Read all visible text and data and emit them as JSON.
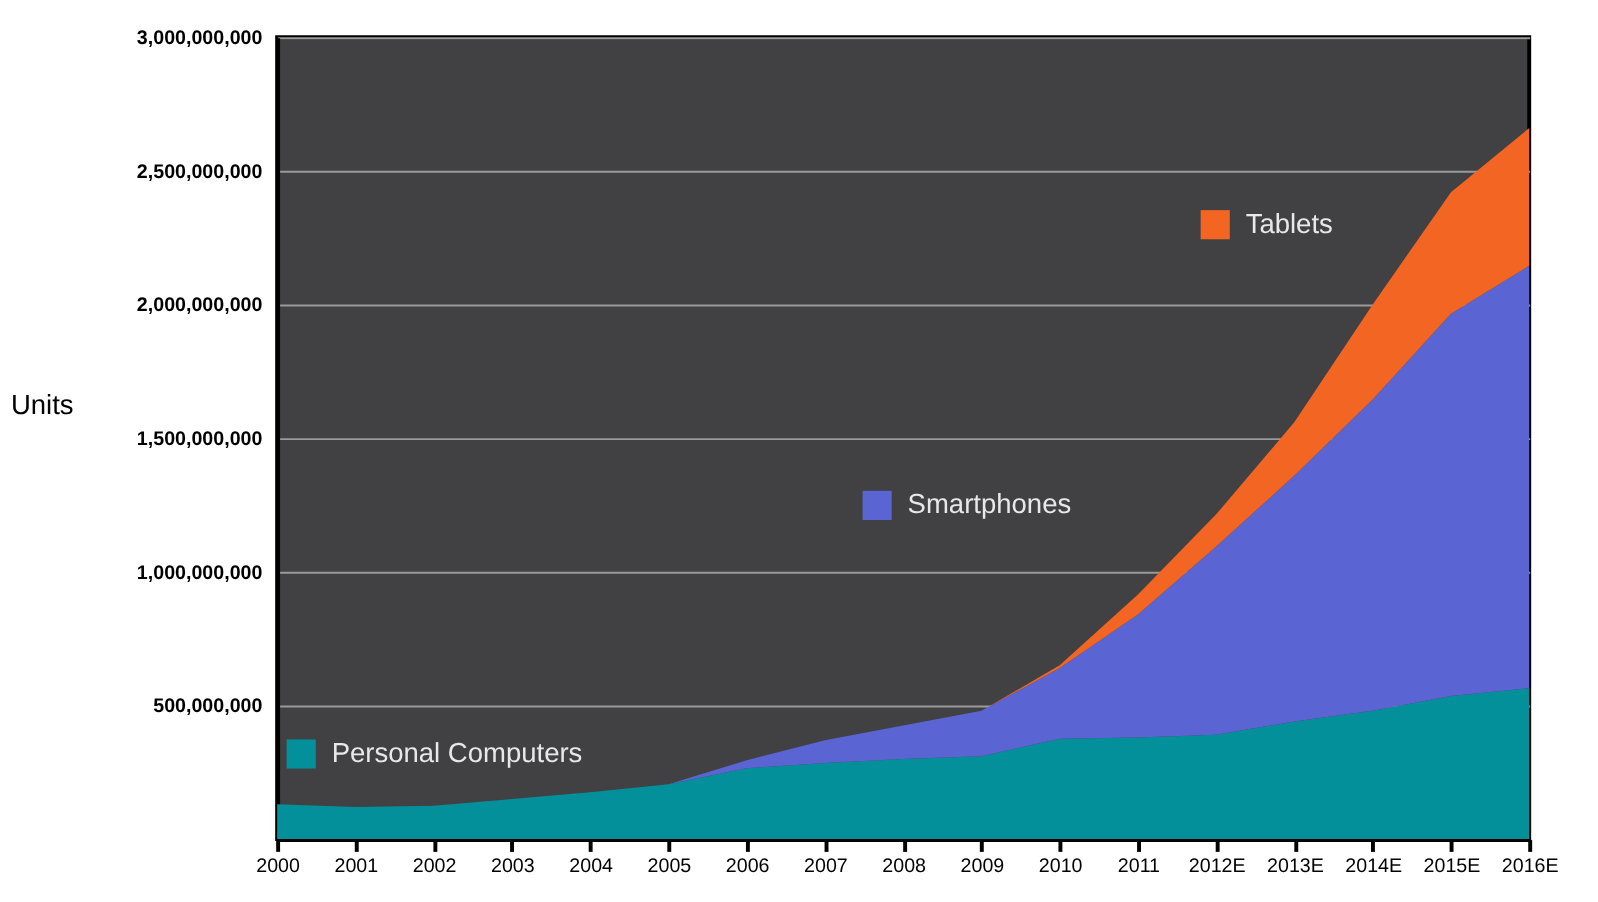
{
  "chart_data": {
    "type": "area",
    "stacked": true,
    "ylabel": "Units",
    "categories": [
      "2000",
      "2001",
      "2002",
      "2003",
      "2004",
      "2005",
      "2006",
      "2007",
      "2008",
      "2009",
      "2010",
      "2011",
      "2012E",
      "2013E",
      "2014E",
      "2015E",
      "2016E"
    ],
    "series": [
      {
        "name": "Personal Computers",
        "color": "#04909a",
        "values": [
          130000000,
          120000000,
          125000000,
          150000000,
          175000000,
          205000000,
          265000000,
          285000000,
          300000000,
          310000000,
          375000000,
          380000000,
          390000000,
          440000000,
          480000000,
          535000000,
          565000000
        ]
      },
      {
        "name": "Smartphones",
        "color": "#5a64d2",
        "values": [
          0,
          0,
          0,
          0,
          0,
          0,
          30000000,
          85000000,
          125000000,
          170000000,
          265000000,
          460000000,
          705000000,
          920000000,
          1165000000,
          1430000000,
          1580000000
        ]
      },
      {
        "name": "Tablets",
        "color": "#f26522",
        "values": [
          0,
          0,
          0,
          0,
          0,
          0,
          0,
          0,
          0,
          0,
          10000000,
          75000000,
          120000000,
          200000000,
          355000000,
          455000000,
          515000000
        ]
      }
    ],
    "ylim": [
      0,
      3000000000
    ],
    "yticks": [
      {
        "value": 500000000,
        "label": "500,000,000"
      },
      {
        "value": 1000000000,
        "label": "1,000,000,000"
      },
      {
        "value": 1500000000,
        "label": "1,500,000,000"
      },
      {
        "value": 2000000000,
        "label": "2,000,000,000"
      },
      {
        "value": 2500000000,
        "label": "2,500,000,000"
      },
      {
        "value": 3000000000,
        "label": "3,000,000,000"
      }
    ],
    "grid": "y",
    "legend": "left"
  }
}
